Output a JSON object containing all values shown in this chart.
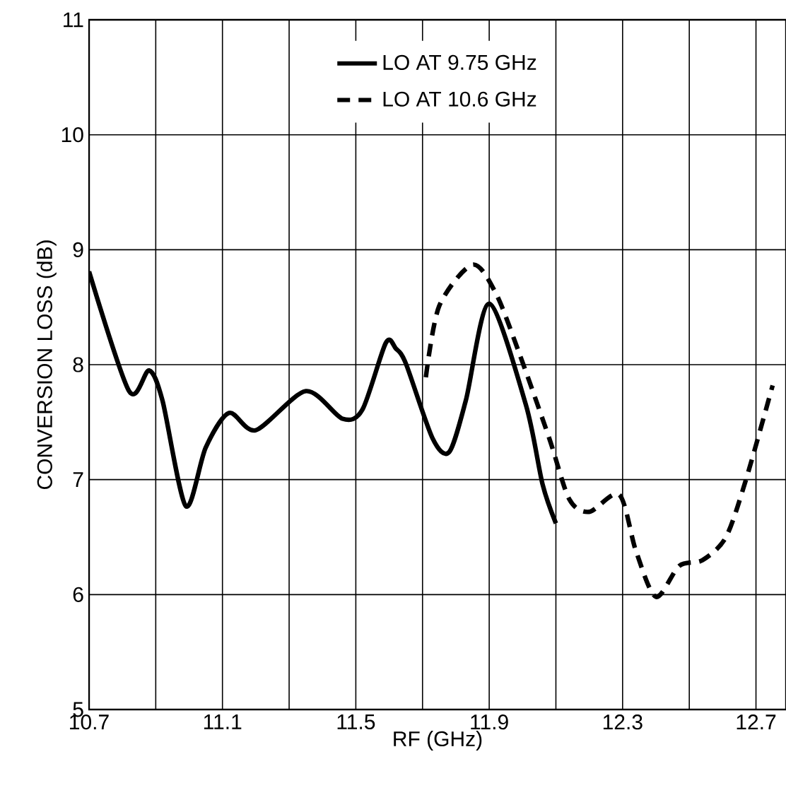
{
  "chart_data": {
    "type": "line",
    "xlabel": "RF (GHz)",
    "ylabel": "CONVERSION LOSS (dB)",
    "xlim": [
      10.7,
      12.79
    ],
    "ylim": [
      5,
      11
    ],
    "xticks": [
      10.7,
      {
        "value": 10.9,
        "label": null
      },
      11.1,
      {
        "value": 11.3,
        "label": null
      },
      11.5,
      {
        "value": 11.7,
        "label": null
      },
      11.9,
      {
        "value": 12.1,
        "label": null
      },
      12.3,
      {
        "value": 12.5,
        "label": null
      },
      12.7
    ],
    "yticks": [
      5,
      6,
      7,
      8,
      9,
      10,
      11
    ],
    "grid": true,
    "legend": "top",
    "series": [
      {
        "name": "LO AT 9.75 GHz",
        "color": "#000000",
        "line_style": "solid",
        "x": [
          10.7,
          10.82,
          10.88,
          10.92,
          10.99,
          11.05,
          11.12,
          11.2,
          11.35,
          11.46,
          11.52,
          11.59,
          11.62,
          11.65,
          11.73,
          11.78,
          11.83,
          11.9,
          12.01,
          12.06,
          12.1
        ],
        "values": [
          8.81,
          7.77,
          7.95,
          7.69,
          6.77,
          7.28,
          7.58,
          7.43,
          7.77,
          7.53,
          7.61,
          8.19,
          8.14,
          8.01,
          7.36,
          7.24,
          7.69,
          8.53,
          7.65,
          6.96,
          6.62
        ]
      },
      {
        "name": "LO AT 10.6 GHz",
        "color": "#000000",
        "line_style": "dashed",
        "x": [
          11.71,
          11.75,
          11.85,
          11.92,
          11.99,
          12.08,
          12.14,
          12.2,
          12.29,
          12.34,
          12.4,
          12.47,
          12.54,
          12.61,
          12.67,
          12.75
        ],
        "values": [
          7.89,
          8.51,
          8.87,
          8.62,
          8.1,
          7.36,
          6.83,
          6.72,
          6.87,
          6.38,
          5.98,
          6.25,
          6.3,
          6.5,
          7.0,
          7.82
        ]
      }
    ]
  }
}
